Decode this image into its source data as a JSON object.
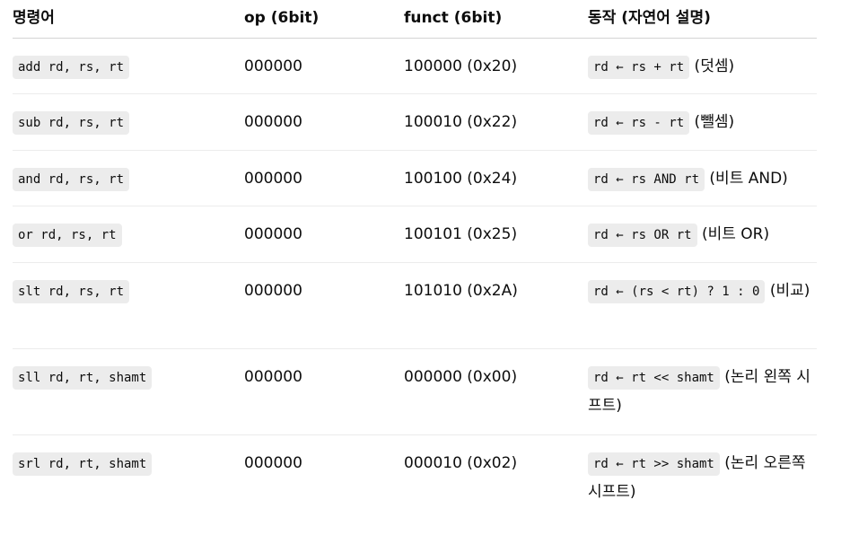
{
  "headers": [
    "명령어",
    "op (6bit)",
    "funct (6bit)",
    "동작 (자연어 설명)"
  ],
  "rows": [
    {
      "instr": "add rd, rs, rt",
      "op": "000000",
      "funct": "100000 (0x20)",
      "action_code": "rd ← rs + rt",
      "action_text": " (덧셈)"
    },
    {
      "instr": "sub rd, rs, rt",
      "op": "000000",
      "funct": "100010 (0x22)",
      "action_code": "rd ← rs - rt",
      "action_text": " (뺄셈)"
    },
    {
      "instr": "and rd, rs, rt",
      "op": "000000",
      "funct": "100100 (0x24)",
      "action_code": "rd ← rs AND rt",
      "action_text": " (비트 AND)"
    },
    {
      "instr": "or rd, rs, rt",
      "op": "000000",
      "funct": "100101 (0x25)",
      "action_code": "rd ← rs OR rt",
      "action_text": " (비트 OR)"
    },
    {
      "instr": "slt rd, rs, rt",
      "op": "000000",
      "funct": "101010 (0x2A)",
      "action_code": "rd ← (rs < rt) ? 1 : 0",
      "action_text": " (비교)"
    },
    {
      "instr": "sll rd, rt, shamt",
      "op": "000000",
      "funct": "000000 (0x00)",
      "action_code": "rd ← rt << shamt",
      "action_text": " (논리 왼쪽 시프트)"
    },
    {
      "instr": "srl rd, rt, shamt",
      "op": "000000",
      "funct": "000010 (0x02)",
      "action_code": "rd ← rt >> shamt",
      "action_text": " (논리 오른쪽 시프트)"
    }
  ]
}
